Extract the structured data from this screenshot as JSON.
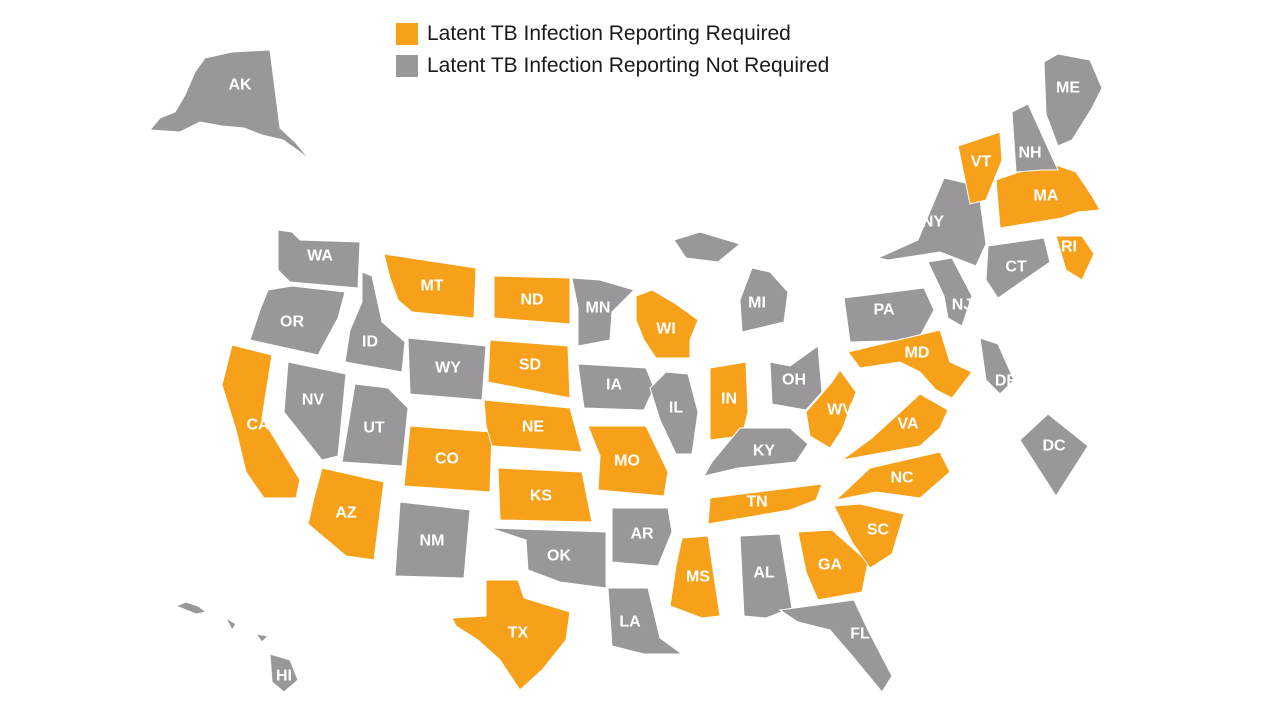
{
  "colors": {
    "required": "#f7a11a",
    "not_required": "#999799"
  },
  "legend": {
    "required_label": "Latent TB Infection Reporting Required",
    "not_required_label": "Latent TB Infection Reporting Not Required"
  },
  "states": [
    {
      "code": "AK",
      "status": "not_required"
    },
    {
      "code": "WA",
      "status": "not_required"
    },
    {
      "code": "OR",
      "status": "not_required"
    },
    {
      "code": "CA",
      "status": "required"
    },
    {
      "code": "ID",
      "status": "not_required"
    },
    {
      "code": "NV",
      "status": "not_required"
    },
    {
      "code": "UT",
      "status": "not_required"
    },
    {
      "code": "AZ",
      "status": "required"
    },
    {
      "code": "MT",
      "status": "required"
    },
    {
      "code": "WY",
      "status": "not_required"
    },
    {
      "code": "CO",
      "status": "required"
    },
    {
      "code": "NM",
      "status": "not_required"
    },
    {
      "code": "ND",
      "status": "required"
    },
    {
      "code": "SD",
      "status": "required"
    },
    {
      "code": "NE",
      "status": "required"
    },
    {
      "code": "KS",
      "status": "required"
    },
    {
      "code": "OK",
      "status": "not_required"
    },
    {
      "code": "TX",
      "status": "required"
    },
    {
      "code": "MN",
      "status": "not_required"
    },
    {
      "code": "IA",
      "status": "not_required"
    },
    {
      "code": "MO",
      "status": "required"
    },
    {
      "code": "AR",
      "status": "not_required"
    },
    {
      "code": "LA",
      "status": "not_required"
    },
    {
      "code": "WI",
      "status": "required"
    },
    {
      "code": "IL",
      "status": "not_required"
    },
    {
      "code": "MI",
      "status": "not_required"
    },
    {
      "code": "IN",
      "status": "required"
    },
    {
      "code": "OH",
      "status": "not_required"
    },
    {
      "code": "KY",
      "status": "not_required"
    },
    {
      "code": "TN",
      "status": "required"
    },
    {
      "code": "MS",
      "status": "required"
    },
    {
      "code": "AL",
      "status": "not_required"
    },
    {
      "code": "GA",
      "status": "required"
    },
    {
      "code": "FL",
      "status": "not_required"
    },
    {
      "code": "SC",
      "status": "required"
    },
    {
      "code": "NC",
      "status": "required"
    },
    {
      "code": "VA",
      "status": "required"
    },
    {
      "code": "WV",
      "status": "required"
    },
    {
      "code": "PA",
      "status": "not_required"
    },
    {
      "code": "NY",
      "status": "not_required"
    },
    {
      "code": "MD",
      "status": "required"
    },
    {
      "code": "DE",
      "status": "not_required"
    },
    {
      "code": "NJ",
      "status": "not_required"
    },
    {
      "code": "DC",
      "status": "not_required"
    },
    {
      "code": "CT",
      "status": "not_required"
    },
    {
      "code": "RI",
      "status": "required"
    },
    {
      "code": "MA",
      "status": "required"
    },
    {
      "code": "VT",
      "status": "required"
    },
    {
      "code": "NH",
      "status": "not_required"
    },
    {
      "code": "ME",
      "status": "not_required"
    },
    {
      "code": "HI",
      "status": "not_required"
    }
  ]
}
